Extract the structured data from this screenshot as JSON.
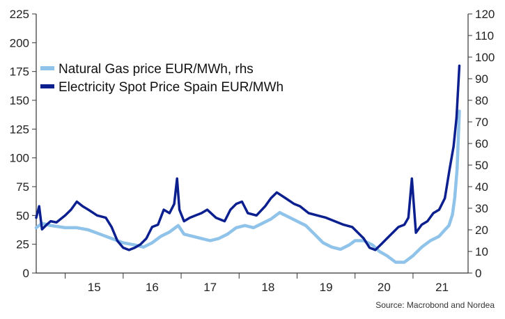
{
  "chart_data": {
    "type": "line",
    "title": "",
    "xlabel": "",
    "ylabel_left": "",
    "ylabel_right": "",
    "x_unit": "year (decimal)",
    "xlim": [
      2014.5,
      2021.95
    ],
    "ylim_left": [
      0,
      225
    ],
    "ylim_right": [
      0,
      120
    ],
    "left_ticks": [
      0,
      25,
      50,
      75,
      100,
      125,
      150,
      175,
      200,
      225
    ],
    "right_ticks": [
      0,
      10,
      20,
      30,
      40,
      50,
      60,
      70,
      80,
      90,
      100,
      110,
      120
    ],
    "x_tick_labels": [
      "15",
      "16",
      "17",
      "18",
      "19",
      "20",
      "21"
    ],
    "legend_position": "top-left",
    "colors": {
      "gas": "#8fc3ea",
      "electricity": "#0b1f8f",
      "axis": "#333333"
    },
    "series": [
      {
        "name": "Natural Gas price EUR/MWh, rhs",
        "axis": "right",
        "color": "#8fc3ea",
        "x": [
          2014.5,
          2014.6,
          2014.75,
          2015.0,
          2015.2,
          2015.4,
          2015.6,
          2015.8,
          2016.0,
          2016.2,
          2016.35,
          2016.5,
          2016.65,
          2016.8,
          2016.95,
          2017.05,
          2017.2,
          2017.35,
          2017.5,
          2017.65,
          2017.8,
          2017.95,
          2018.1,
          2018.25,
          2018.4,
          2018.55,
          2018.7,
          2018.85,
          2019.0,
          2019.15,
          2019.3,
          2019.45,
          2019.6,
          2019.75,
          2019.9,
          2020.0,
          2020.15,
          2020.3,
          2020.42,
          2020.55,
          2020.7,
          2020.85,
          2021.0,
          2021.15,
          2021.3,
          2021.45,
          2021.55,
          2021.62,
          2021.68,
          2021.72,
          2021.76,
          2021.8
        ],
        "values": [
          21,
          23,
          22,
          21,
          21,
          20,
          18,
          16,
          14,
          13,
          12,
          14,
          17,
          19,
          22,
          18,
          17,
          16,
          15,
          16,
          18,
          21,
          22,
          21,
          23,
          25,
          28,
          26,
          24,
          22,
          18,
          14,
          12,
          11,
          13,
          15,
          15,
          13,
          10,
          8,
          5,
          5,
          8,
          12,
          15,
          17,
          20,
          22,
          27,
          35,
          48,
          75
        ]
      },
      {
        "name": "Electricity Spot Price Spain EUR/MWh",
        "axis": "left",
        "color": "#0b1f8f",
        "x": [
          2014.5,
          2014.55,
          2014.6,
          2014.68,
          2014.75,
          2014.85,
          2015.0,
          2015.1,
          2015.2,
          2015.3,
          2015.4,
          2015.55,
          2015.7,
          2015.8,
          2015.9,
          2016.0,
          2016.1,
          2016.2,
          2016.3,
          2016.4,
          2016.5,
          2016.6,
          2016.7,
          2016.8,
          2016.88,
          2016.93,
          2016.97,
          2017.05,
          2017.15,
          2017.25,
          2017.35,
          2017.45,
          2017.6,
          2017.75,
          2017.85,
          2017.95,
          2018.05,
          2018.15,
          2018.3,
          2018.45,
          2018.55,
          2018.65,
          2018.8,
          2018.95,
          2019.05,
          2019.2,
          2019.35,
          2019.5,
          2019.65,
          2019.8,
          2019.95,
          2020.05,
          2020.15,
          2020.25,
          2020.35,
          2020.45,
          2020.55,
          2020.65,
          2020.75,
          2020.85,
          2020.92,
          2020.98,
          2021.05,
          2021.15,
          2021.25,
          2021.35,
          2021.45,
          2021.55,
          2021.63,
          2021.7,
          2021.75,
          2021.8
        ],
        "values": [
          48,
          58,
          38,
          42,
          45,
          44,
          50,
          55,
          62,
          58,
          55,
          50,
          48,
          40,
          28,
          22,
          20,
          22,
          25,
          30,
          40,
          42,
          55,
          52,
          60,
          82,
          55,
          45,
          48,
          50,
          52,
          55,
          48,
          45,
          55,
          60,
          62,
          52,
          50,
          58,
          65,
          70,
          65,
          60,
          58,
          52,
          50,
          48,
          45,
          42,
          40,
          35,
          30,
          22,
          20,
          25,
          30,
          35,
          40,
          42,
          48,
          82,
          35,
          42,
          45,
          52,
          55,
          65,
          90,
          110,
          135,
          180
        ]
      }
    ],
    "source": "Source: Macrobond and Nordea"
  }
}
